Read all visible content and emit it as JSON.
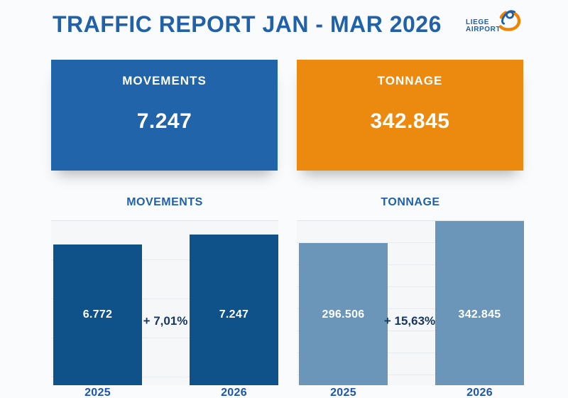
{
  "page_title": "TRAFFIC REPORT JAN - MAR 2026",
  "logo": {
    "line1": "LIEGE",
    "line2": "AIRPORT",
    "icon": "liege-airport-swirl-icon",
    "text_color": "#1e5fa8",
    "icon_orange": "#f08300",
    "icon_blue": "#1e5fa8"
  },
  "cards": [
    {
      "label": "MOVEMENTS",
      "value": "7.247",
      "color": "#2264a9"
    },
    {
      "label": "TONNAGE",
      "value": "342.845",
      "color": "#ec8a10"
    }
  ],
  "chart_data": [
    {
      "type": "bar",
      "title": "MOVEMENTS",
      "categories": [
        "2025",
        "2026"
      ],
      "values": [
        6772,
        7247
      ],
      "value_labels": [
        "6.772",
        "7.247"
      ],
      "delta_label": "+ 7,01%",
      "ylim": [
        0,
        7900
      ],
      "bar_color": "#0f5189",
      "grid": true,
      "legend": false
    },
    {
      "type": "bar",
      "title": "TONNAGE",
      "categories": [
        "2025",
        "2026"
      ],
      "values": [
        296506,
        342845
      ],
      "value_labels": [
        "296.506",
        "342.845"
      ],
      "delta_label": "+ 15,63%",
      "ylim": [
        0,
        342845
      ],
      "bar_color": "#6b96ba",
      "grid": true,
      "legend": false
    }
  ],
  "colors": {
    "title_text": "#2161a8",
    "delta_text": "#17375f",
    "year_text": "#1c56ad",
    "background": "#fafbfc",
    "gridline": "#e8ecf1"
  }
}
